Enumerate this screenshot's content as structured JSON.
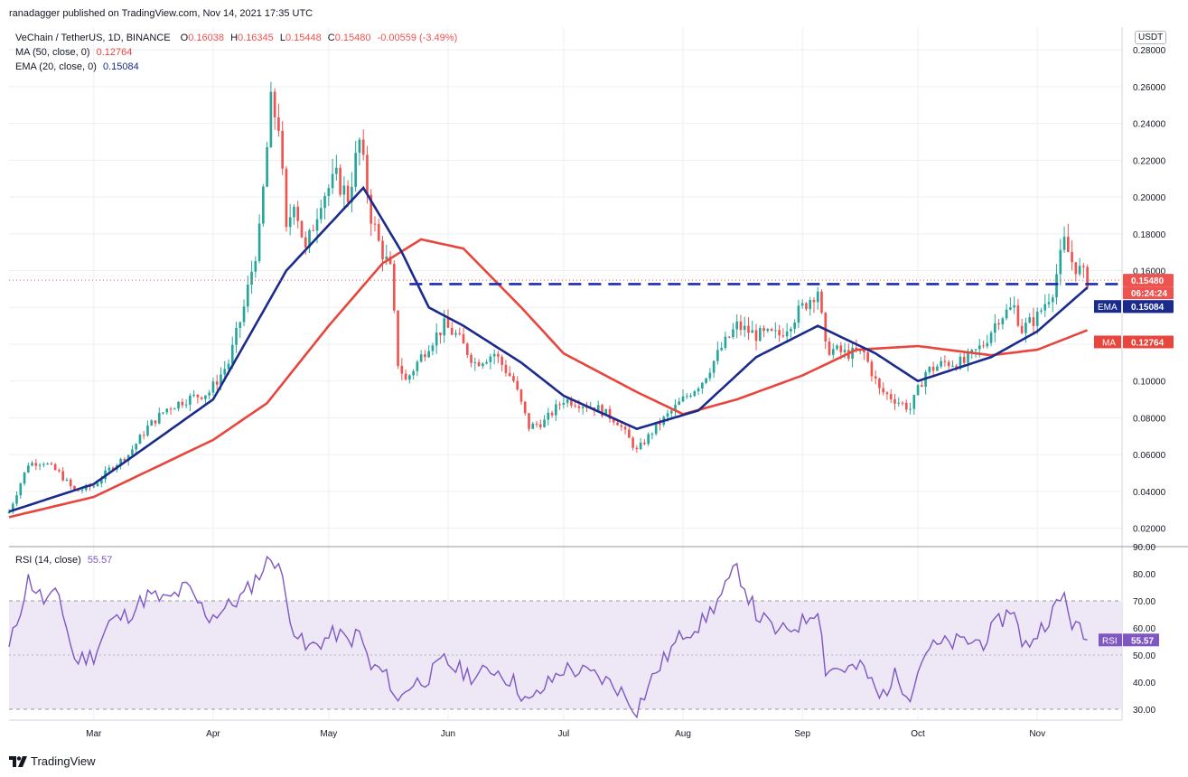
{
  "header": {
    "published": "ranadagger published on TradingView.com, Nov 14, 2021 17:35 UTC",
    "symbol": "VeChain / TetherUS, 1D, BINANCE",
    "ohlc": {
      "O": "0.16038",
      "H": "0.16345",
      "L": "0.15448",
      "C": "0.15480",
      "change": "-0.00559 (-3.49%)"
    },
    "ma_label": "MA (50, close, 0)",
    "ma_value": "0.12764",
    "ema_label": "EMA (20, close, 0)",
    "ema_value": "0.15084",
    "rsi_label": "RSI (14, close)",
    "rsi_value": "55.57",
    "currency": "USDT",
    "logo_text": "TradingView"
  },
  "colors": {
    "up": "#26a69a",
    "down": "#ef5350",
    "ema": "#1a2b8c",
    "ma": "#e8453c",
    "rsi": "#7e57c2",
    "rsi_band": "#ede7f6",
    "hline": "#1a2bb5",
    "grid": "#eceff3"
  },
  "chart_data": [
    {
      "type": "candlestick",
      "ylim": [
        0.01,
        0.285
      ],
      "y_ticks": [
        "0.28000",
        "0.26000",
        "0.24000",
        "0.22000",
        "0.20000",
        "0.18000",
        "0.16000",
        "0.14000",
        "0.12000",
        "0.10000",
        "0.08000",
        "0.06000",
        "0.04000",
        "0.02000"
      ],
      "x_labels": [
        "Mar",
        "Apr",
        "May",
        "Jun",
        "Jul",
        "Aug",
        "Sep",
        "Oct",
        "Nov"
      ],
      "x_dates": [
        "2021-03-01",
        "2021-04-01",
        "2021-05-01",
        "2021-06-01",
        "2021-07-01",
        "2021-08-01",
        "2021-09-01",
        "2021-10-01",
        "2021-11-01"
      ],
      "x_range": [
        "2021-02-07",
        "2021-11-23"
      ],
      "price_anchors": [
        [
          "2021-02-07",
          0.029
        ],
        [
          "2021-02-12",
          0.055
        ],
        [
          "2021-02-16",
          0.056
        ],
        [
          "2021-02-20",
          0.05
        ],
        [
          "2021-02-24",
          0.04
        ],
        [
          "2021-03-01",
          0.043
        ],
        [
          "2021-03-05",
          0.052
        ],
        [
          "2021-03-10",
          0.06
        ],
        [
          "2021-03-15",
          0.075
        ],
        [
          "2021-03-20",
          0.085
        ],
        [
          "2021-03-25",
          0.09
        ],
        [
          "2021-03-31",
          0.094
        ],
        [
          "2021-04-05",
          0.11
        ],
        [
          "2021-04-09",
          0.14
        ],
        [
          "2021-04-13",
          0.18
        ],
        [
          "2021-04-16",
          0.25
        ],
        [
          "2021-04-18",
          0.24
        ],
        [
          "2021-04-20",
          0.18
        ],
        [
          "2021-04-22",
          0.2
        ],
        [
          "2021-04-25",
          0.17
        ],
        [
          "2021-04-29",
          0.2
        ],
        [
          "2021-05-03",
          0.21
        ],
        [
          "2021-05-06",
          0.2
        ],
        [
          "2021-05-09",
          0.23
        ],
        [
          "2021-05-12",
          0.19
        ],
        [
          "2021-05-14",
          0.175
        ],
        [
          "2021-05-17",
          0.16
        ],
        [
          "2021-05-19",
          0.11
        ],
        [
          "2021-05-21",
          0.1
        ],
        [
          "2021-05-24",
          0.11
        ],
        [
          "2021-05-27",
          0.12
        ],
        [
          "2021-05-31",
          0.13
        ],
        [
          "2021-06-03",
          0.125
        ],
        [
          "2021-06-08",
          0.11
        ],
        [
          "2021-06-13",
          0.115
        ],
        [
          "2021-06-18",
          0.1
        ],
        [
          "2021-06-22",
          0.075
        ],
        [
          "2021-06-26",
          0.078
        ],
        [
          "2021-07-01",
          0.09
        ],
        [
          "2021-07-05",
          0.088
        ],
        [
          "2021-07-10",
          0.085
        ],
        [
          "2021-07-15",
          0.078
        ],
        [
          "2021-07-20",
          0.062
        ],
        [
          "2021-07-25",
          0.075
        ],
        [
          "2021-08-01",
          0.09
        ],
        [
          "2021-08-06",
          0.1
        ],
        [
          "2021-08-11",
          0.118
        ],
        [
          "2021-08-15",
          0.13
        ],
        [
          "2021-08-20",
          0.125
        ],
        [
          "2021-08-26",
          0.125
        ],
        [
          "2021-09-01",
          0.14
        ],
        [
          "2021-09-05",
          0.15
        ],
        [
          "2021-09-07",
          0.118
        ],
        [
          "2021-09-12",
          0.115
        ],
        [
          "2021-09-17",
          0.115
        ],
        [
          "2021-09-21",
          0.095
        ],
        [
          "2021-09-25",
          0.09
        ],
        [
          "2021-09-29",
          0.085
        ],
        [
          "2021-10-03",
          0.105
        ],
        [
          "2021-10-08",
          0.11
        ],
        [
          "2021-10-13",
          0.11
        ],
        [
          "2021-10-18",
          0.12
        ],
        [
          "2021-10-22",
          0.135
        ],
        [
          "2021-10-26",
          0.14
        ],
        [
          "2021-10-28",
          0.128
        ],
        [
          "2021-11-01",
          0.135
        ],
        [
          "2021-11-05",
          0.15
        ],
        [
          "2021-11-08",
          0.175
        ],
        [
          "2021-11-10",
          0.165
        ],
        [
          "2021-11-14",
          0.1548
        ]
      ],
      "ma50_anchors": [
        [
          "2021-02-07",
          0.026
        ],
        [
          "2021-03-01",
          0.037
        ],
        [
          "2021-04-01",
          0.068
        ],
        [
          "2021-04-15",
          0.088
        ],
        [
          "2021-05-01",
          0.13
        ],
        [
          "2021-05-15",
          0.164
        ],
        [
          "2021-05-25",
          0.177
        ],
        [
          "2021-06-05",
          0.172
        ],
        [
          "2021-06-20",
          0.14
        ],
        [
          "2021-07-01",
          0.115
        ],
        [
          "2021-07-20",
          0.094
        ],
        [
          "2021-08-01",
          0.082
        ],
        [
          "2021-08-15",
          0.09
        ],
        [
          "2021-09-01",
          0.103
        ],
        [
          "2021-09-15",
          0.117
        ],
        [
          "2021-10-01",
          0.119
        ],
        [
          "2021-10-20",
          0.114
        ],
        [
          "2021-11-01",
          0.117
        ],
        [
          "2021-11-14",
          0.12764
        ]
      ],
      "ema20_anchors": [
        [
          "2021-02-07",
          0.029
        ],
        [
          "2021-03-01",
          0.044
        ],
        [
          "2021-04-01",
          0.09
        ],
        [
          "2021-04-20",
          0.16
        ],
        [
          "2021-05-10",
          0.205
        ],
        [
          "2021-05-20",
          0.17
        ],
        [
          "2021-05-27",
          0.14
        ],
        [
          "2021-06-05",
          0.13
        ],
        [
          "2021-06-20",
          0.11
        ],
        [
          "2021-07-01",
          0.092
        ],
        [
          "2021-07-20",
          0.074
        ],
        [
          "2021-08-05",
          0.084
        ],
        [
          "2021-08-20",
          0.113
        ],
        [
          "2021-09-05",
          0.13
        ],
        [
          "2021-09-20",
          0.115
        ],
        [
          "2021-10-01",
          0.1
        ],
        [
          "2021-10-20",
          0.113
        ],
        [
          "2021-11-01",
          0.127
        ],
        [
          "2021-11-14",
          0.15084
        ]
      ],
      "resistance": 0.1527,
      "last_price": "0.15480",
      "countdown": "06:24:24",
      "resistance_label": "0.15272",
      "ema_tag": "EMA",
      "ema_tag_value": "0.15084",
      "ma_tag": "MA",
      "ma_tag_value": "0.12764"
    },
    {
      "type": "line",
      "name": "RSI (14, close)",
      "ylim": [
        26,
        90
      ],
      "y_ticks": [
        "90.00",
        "80.00",
        "70.00",
        "60.00",
        "50.00",
        "40.00",
        "30.00"
      ],
      "band": [
        30,
        70
      ],
      "mid": 50,
      "rsi_anchors": [
        [
          "2021-02-07",
          52
        ],
        [
          "2021-02-12",
          78
        ],
        [
          "2021-02-16",
          70
        ],
        [
          "2021-02-20",
          72
        ],
        [
          "2021-02-24",
          48
        ],
        [
          "2021-03-01",
          50
        ],
        [
          "2021-03-05",
          62
        ],
        [
          "2021-03-10",
          65
        ],
        [
          "2021-03-15",
          72
        ],
        [
          "2021-03-20",
          70
        ],
        [
          "2021-03-25",
          75
        ],
        [
          "2021-03-31",
          64
        ],
        [
          "2021-04-05",
          68
        ],
        [
          "2021-04-09",
          72
        ],
        [
          "2021-04-13",
          80
        ],
        [
          "2021-04-16",
          86
        ],
        [
          "2021-04-18",
          84
        ],
        [
          "2021-04-20",
          70
        ],
        [
          "2021-04-22",
          60
        ],
        [
          "2021-04-25",
          52
        ],
        [
          "2021-04-29",
          55
        ],
        [
          "2021-05-03",
          58
        ],
        [
          "2021-05-06",
          55
        ],
        [
          "2021-05-09",
          58
        ],
        [
          "2021-05-12",
          45
        ],
        [
          "2021-05-14",
          45
        ],
        [
          "2021-05-17",
          40
        ],
        [
          "2021-05-19",
          32
        ],
        [
          "2021-05-21",
          38
        ],
        [
          "2021-05-24",
          40
        ],
        [
          "2021-05-27",
          42
        ],
        [
          "2021-05-31",
          48
        ],
        [
          "2021-06-03",
          45
        ],
        [
          "2021-06-08",
          42
        ],
        [
          "2021-06-13",
          45
        ],
        [
          "2021-06-18",
          40
        ],
        [
          "2021-06-22",
          32
        ],
        [
          "2021-06-26",
          38
        ],
        [
          "2021-07-01",
          45
        ],
        [
          "2021-07-05",
          44
        ],
        [
          "2021-07-10",
          42
        ],
        [
          "2021-07-15",
          38
        ],
        [
          "2021-07-20",
          30
        ],
        [
          "2021-07-25",
          44
        ],
        [
          "2021-08-01",
          58
        ],
        [
          "2021-08-06",
          62
        ],
        [
          "2021-08-11",
          72
        ],
        [
          "2021-08-15",
          82
        ],
        [
          "2021-08-20",
          65
        ],
        [
          "2021-08-26",
          58
        ],
        [
          "2021-09-01",
          62
        ],
        [
          "2021-09-05",
          68
        ],
        [
          "2021-09-07",
          45
        ],
        [
          "2021-09-12",
          45
        ],
        [
          "2021-09-17",
          45
        ],
        [
          "2021-09-21",
          34
        ],
        [
          "2021-09-25",
          42
        ],
        [
          "2021-09-29",
          36
        ],
        [
          "2021-10-03",
          52
        ],
        [
          "2021-10-08",
          54
        ],
        [
          "2021-10-13",
          55
        ],
        [
          "2021-10-18",
          55
        ],
        [
          "2021-10-22",
          62
        ],
        [
          "2021-10-26",
          68
        ],
        [
          "2021-10-28",
          52
        ],
        [
          "2021-11-01",
          58
        ],
        [
          "2021-11-05",
          66
        ],
        [
          "2021-11-08",
          72
        ],
        [
          "2021-11-10",
          62
        ],
        [
          "2021-11-14",
          55.57
        ]
      ],
      "rsi_tag": "RSI",
      "rsi_tag_value": "55.57"
    }
  ]
}
